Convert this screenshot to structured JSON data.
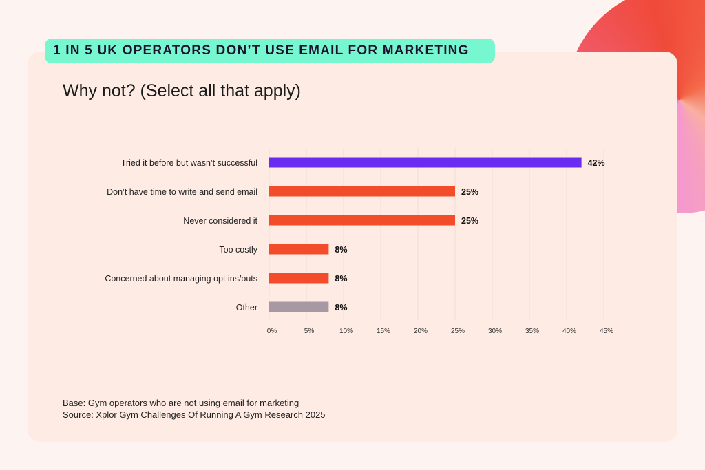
{
  "header": {
    "badge": "1 IN 5 UK OPERATORS DON’T USE EMAIL FOR MARKETING"
  },
  "chart_data": {
    "type": "bar",
    "orientation": "horizontal",
    "title": "Why not? (Select all that apply)",
    "categories": [
      "Tried it before but wasn’t successful",
      "Don’t have time to write and send email",
      "Never considered it",
      "Too costly",
      "Concerned about managing opt ins/outs",
      "Other"
    ],
    "values": [
      42,
      25,
      25,
      8,
      8,
      8
    ],
    "data_labels": [
      "42%",
      "25%",
      "25%",
      "8%",
      "8%",
      "8%"
    ],
    "colors": [
      "#6a2cf0",
      "#f24c2a",
      "#f24c2a",
      "#f24c2a",
      "#f24c2a",
      "#a898a4"
    ],
    "xlim": [
      0,
      45
    ],
    "xticks": [
      0,
      5,
      10,
      15,
      20,
      25,
      30,
      35,
      40,
      45
    ],
    "xtick_labels": [
      "0%",
      "5%",
      "10%",
      "15%",
      "20%",
      "25%",
      "30%",
      "35%",
      "40%",
      "45%"
    ],
    "grid": "vertical"
  },
  "footer": {
    "base": "Base: Gym operators who are not using email for marketing",
    "source": "Source: Xplor Gym Challenges Of Running A Gym Research 2025"
  }
}
